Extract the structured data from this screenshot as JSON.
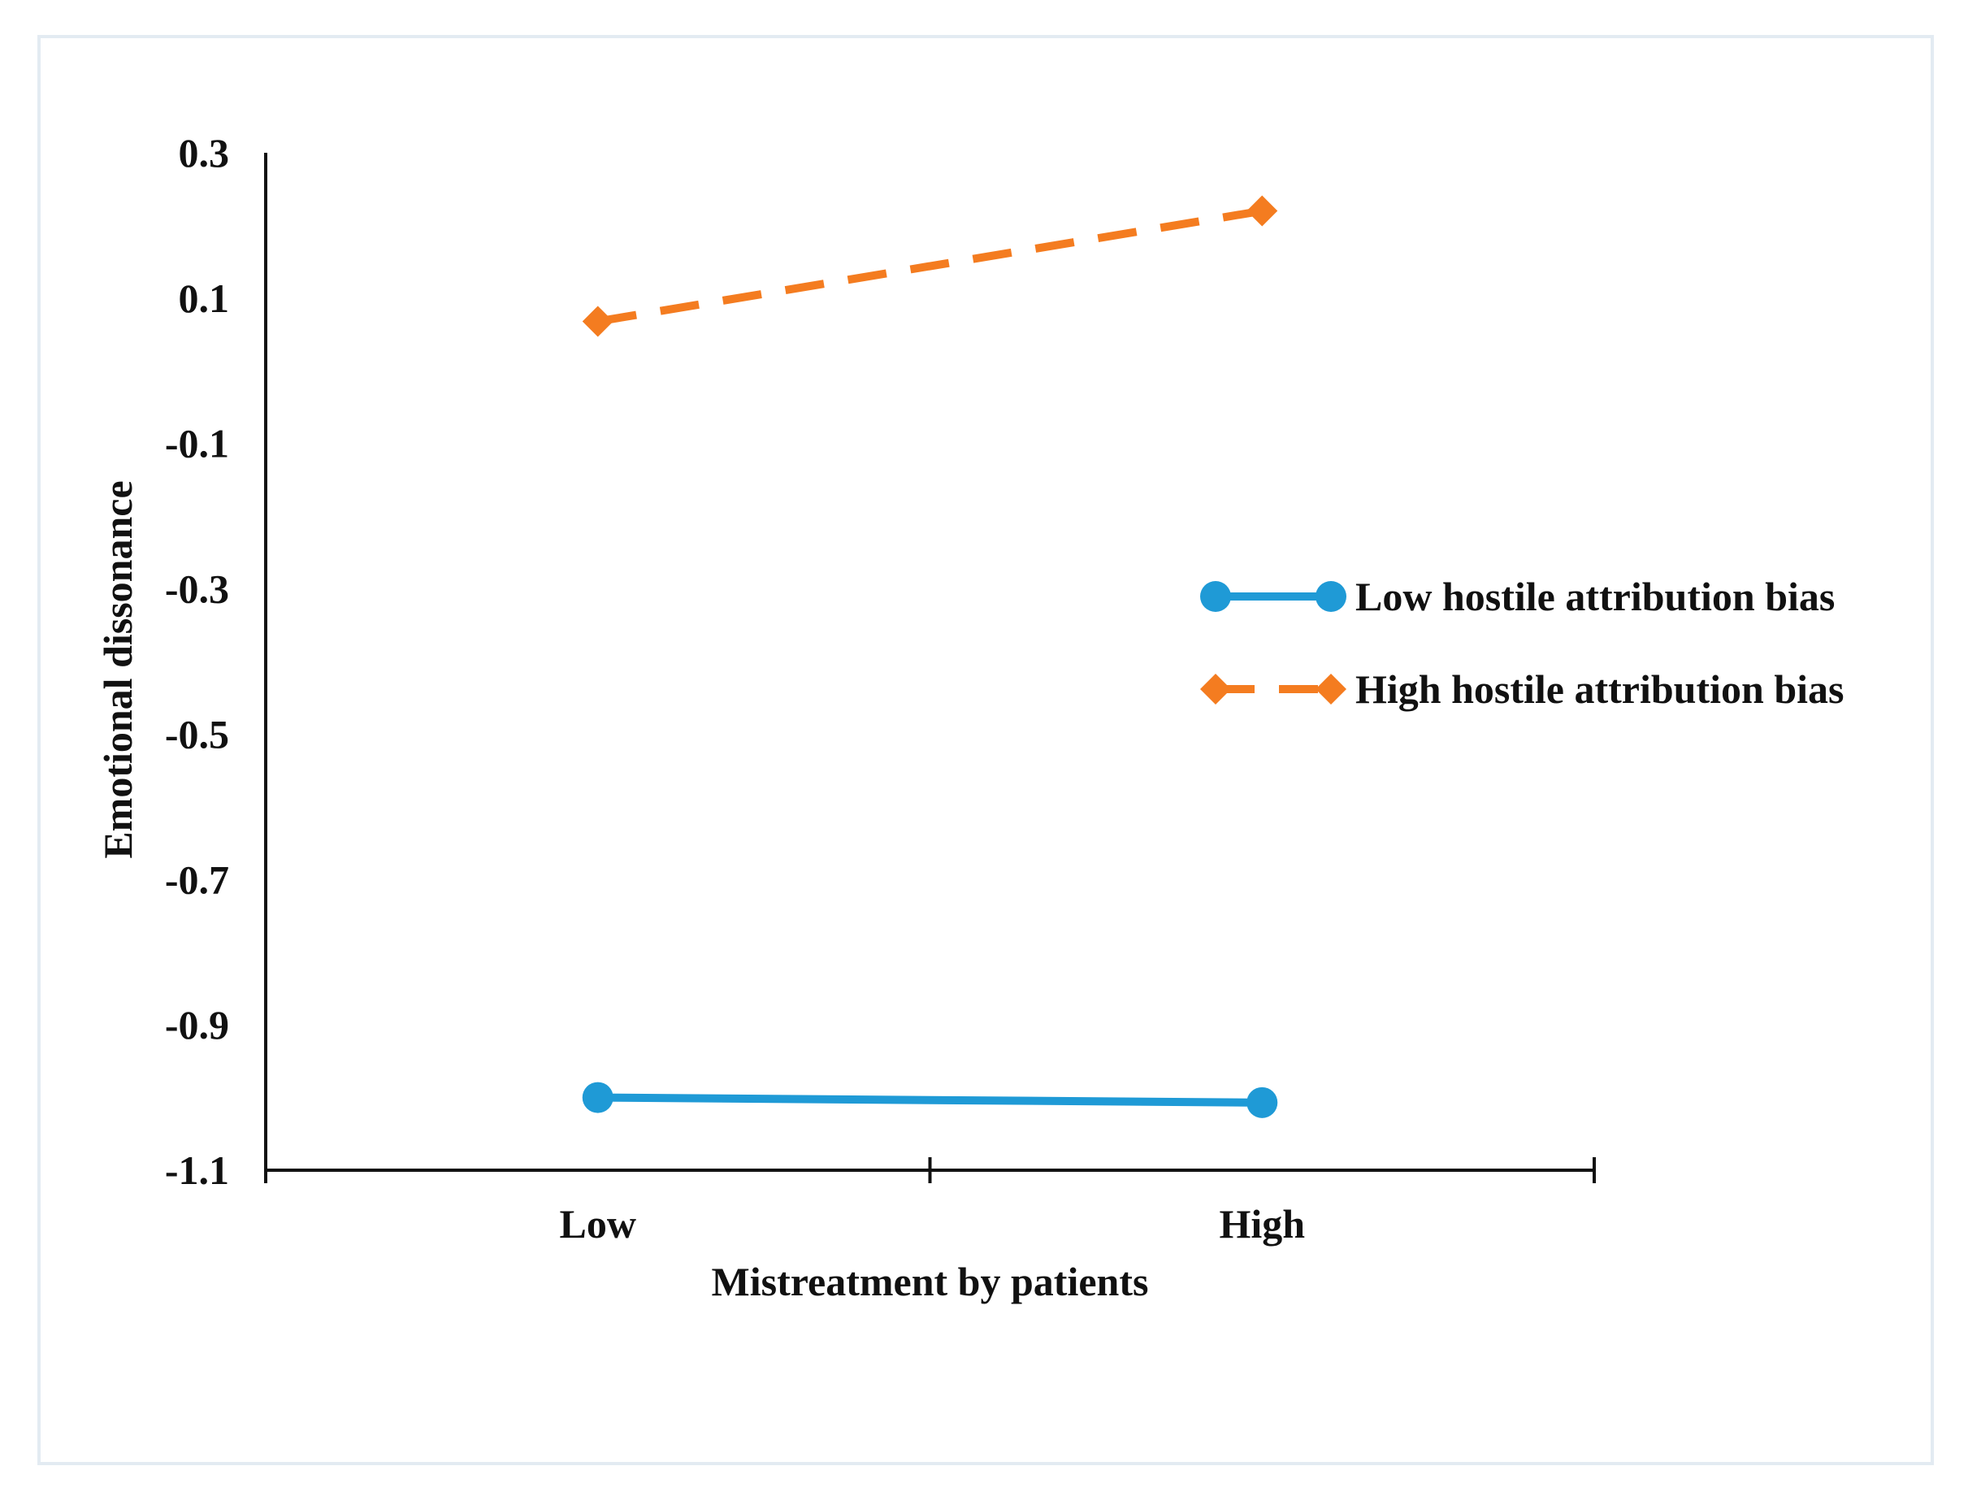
{
  "chart_data": {
    "type": "line",
    "title": "",
    "xlabel": "Mistreatment by patients",
    "ylabel": "Emotional dissonance",
    "categories": [
      "Low",
      "High"
    ],
    "ylim": [
      -1.1,
      0.3
    ],
    "yticks": [
      "0.3",
      "0.1",
      "-0.1",
      "-0.3",
      "-0.5",
      "-0.7",
      "-0.9",
      "-1.1"
    ],
    "ytick_values": [
      0.3,
      0.1,
      -0.1,
      -0.3,
      -0.5,
      -0.7,
      -0.9,
      -1.1
    ],
    "grid": false,
    "legend_position": "right",
    "series": [
      {
        "name": "Low hostile attribution bias",
        "values": [
          -1.0,
          -1.007
        ],
        "color": "#1f9ad6",
        "line_style": "solid",
        "marker": "circle"
      },
      {
        "name": "High hostile attribution bias",
        "values": [
          0.068,
          0.22
        ],
        "color": "#f47c20",
        "line_style": "dashed",
        "marker": "diamond"
      }
    ]
  }
}
